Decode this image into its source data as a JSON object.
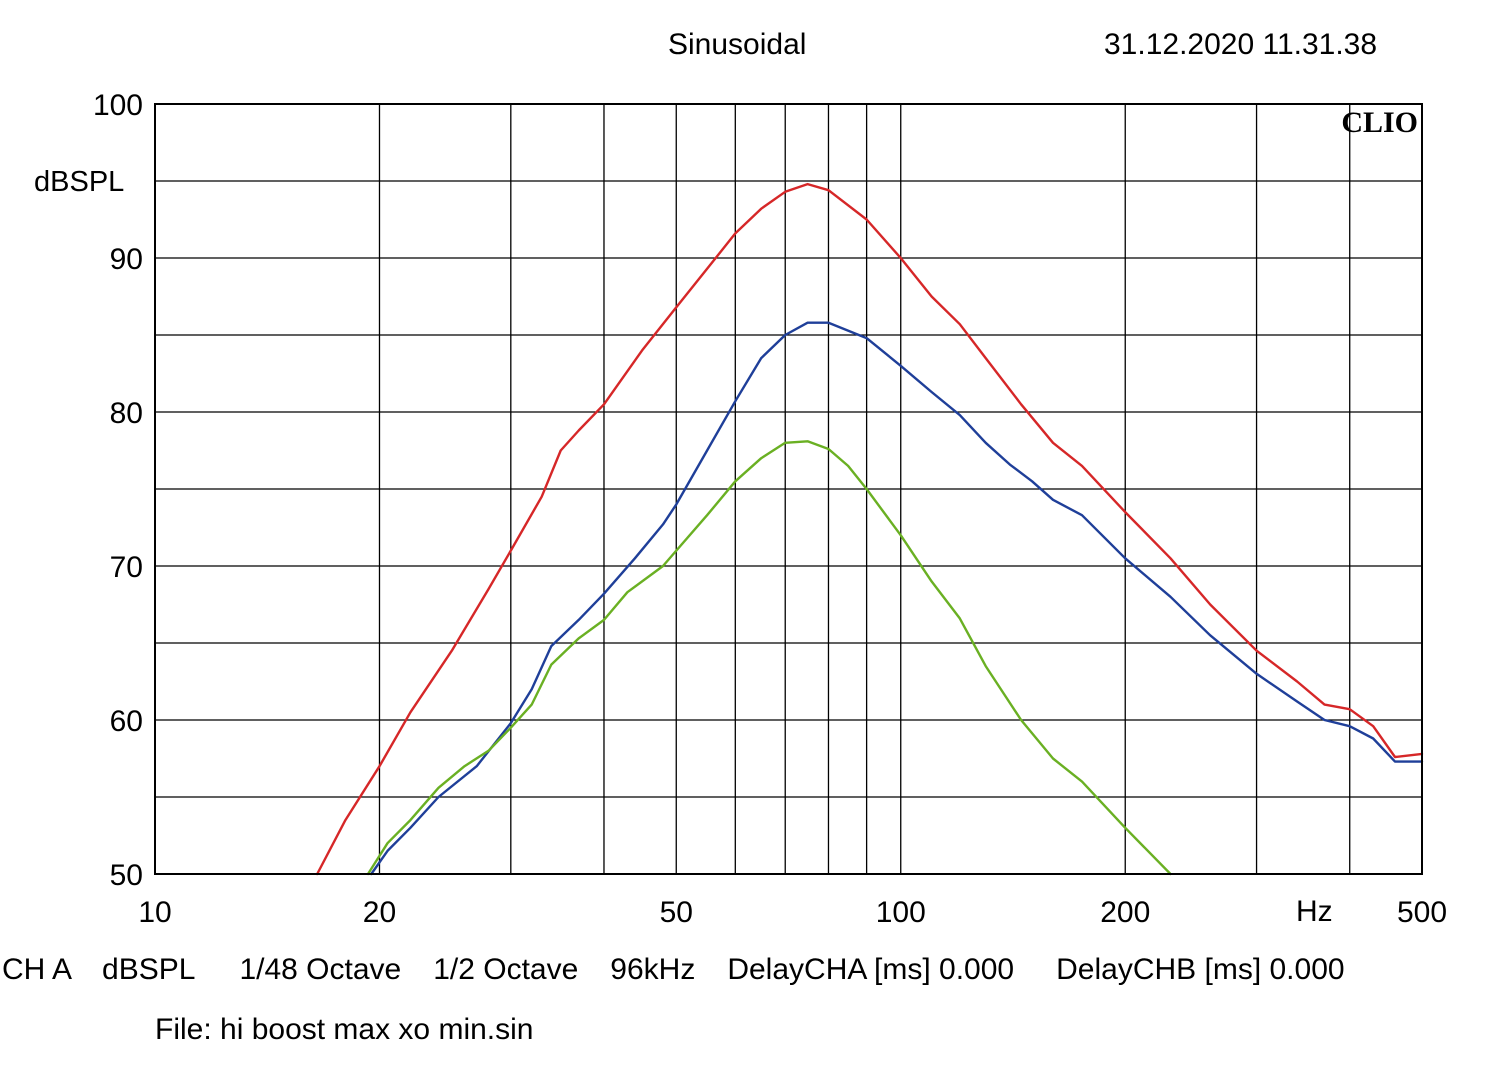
{
  "header": {
    "title": "Sinusoidal",
    "timestamp": "31.12.2020 11.31.38"
  },
  "brand": "CLIO",
  "footer": {
    "channel": "CH A",
    "unit": "dBSPL",
    "resolution": "1/48 Octave",
    "smoothing": "1/2 Octave",
    "sample_rate": "96kHz",
    "delay_a": "DelayCHA [ms] 0.000",
    "delay_b": "DelayCHB [ms] 0.000",
    "file": "File: hi boost max xo min.sin"
  },
  "chart_data": {
    "type": "line",
    "title": "Sinusoidal",
    "ylabel": "dBSPL",
    "xlabel": "Hz",
    "x_scale": "log",
    "xlim": [
      10,
      500
    ],
    "ylim": [
      50,
      100
    ],
    "grid": true,
    "x_ticks": [
      10,
      20,
      50,
      100,
      200,
      500
    ],
    "x_tick_labels": [
      "10",
      "20",
      "50",
      "100",
      "200",
      "500"
    ],
    "y_ticks": [
      50,
      60,
      70,
      80,
      90,
      100
    ],
    "y_tick_labels": [
      "50",
      "60",
      "70",
      "80",
      "90",
      "100"
    ],
    "series": [
      {
        "color": "#d62728",
        "points": [
          [
            16.5,
            50
          ],
          [
            18,
            53.5
          ],
          [
            20,
            57
          ],
          [
            22,
            60.5
          ],
          [
            25,
            64.5
          ],
          [
            28,
            68.5
          ],
          [
            30,
            71
          ],
          [
            33,
            74.5
          ],
          [
            35,
            77.5
          ],
          [
            37,
            78.8
          ],
          [
            40,
            80.5
          ],
          [
            45,
            84
          ],
          [
            50,
            86.8
          ],
          [
            55,
            89.3
          ],
          [
            60,
            91.6
          ],
          [
            65,
            93.2
          ],
          [
            70,
            94.3
          ],
          [
            75,
            94.8
          ],
          [
            80,
            94.4
          ],
          [
            90,
            92.5
          ],
          [
            100,
            90
          ],
          [
            110,
            87.5
          ],
          [
            120,
            85.7
          ],
          [
            130,
            83.5
          ],
          [
            145,
            80.5
          ],
          [
            160,
            78
          ],
          [
            175,
            76.5
          ],
          [
            200,
            73.5
          ],
          [
            230,
            70.5
          ],
          [
            260,
            67.5
          ],
          [
            300,
            64.5
          ],
          [
            340,
            62.5
          ],
          [
            370,
            61
          ],
          [
            400,
            60.7
          ],
          [
            430,
            59.6
          ],
          [
            460,
            57.6
          ],
          [
            500,
            57.8
          ]
        ]
      },
      {
        "color": "#1f3f99",
        "points": [
          [
            19.5,
            50
          ],
          [
            20.5,
            51.5
          ],
          [
            22,
            53
          ],
          [
            24,
            55
          ],
          [
            27,
            57
          ],
          [
            30,
            59.8
          ],
          [
            32,
            62
          ],
          [
            34,
            64.8
          ],
          [
            37,
            66.5
          ],
          [
            40,
            68.2
          ],
          [
            44,
            70.5
          ],
          [
            48,
            72.7
          ],
          [
            50,
            74
          ],
          [
            55,
            77.5
          ],
          [
            60,
            80.7
          ],
          [
            65,
            83.5
          ],
          [
            70,
            85
          ],
          [
            75,
            85.8
          ],
          [
            80,
            85.8
          ],
          [
            90,
            84.8
          ],
          [
            100,
            83
          ],
          [
            110,
            81.3
          ],
          [
            120,
            79.8
          ],
          [
            130,
            78
          ],
          [
            140,
            76.6
          ],
          [
            150,
            75.5
          ],
          [
            160,
            74.3
          ],
          [
            175,
            73.3
          ],
          [
            200,
            70.5
          ],
          [
            230,
            68
          ],
          [
            260,
            65.5
          ],
          [
            300,
            63
          ],
          [
            340,
            61.2
          ],
          [
            370,
            60
          ],
          [
            400,
            59.6
          ],
          [
            430,
            58.8
          ],
          [
            460,
            57.3
          ],
          [
            500,
            57.3
          ]
        ]
      },
      {
        "color": "#6ab023",
        "points": [
          [
            19.3,
            50
          ],
          [
            20.5,
            52
          ],
          [
            22,
            53.5
          ],
          [
            24,
            55.6
          ],
          [
            26,
            57
          ],
          [
            28,
            58
          ],
          [
            30,
            59.5
          ],
          [
            32,
            61
          ],
          [
            34,
            63.6
          ],
          [
            37,
            65.3
          ],
          [
            40,
            66.5
          ],
          [
            43,
            68.3
          ],
          [
            48,
            70
          ],
          [
            50,
            71
          ],
          [
            55,
            73.3
          ],
          [
            60,
            75.5
          ],
          [
            65,
            77
          ],
          [
            70,
            78
          ],
          [
            75,
            78.1
          ],
          [
            80,
            77.6
          ],
          [
            85,
            76.5
          ],
          [
            90,
            75
          ],
          [
            100,
            72
          ],
          [
            110,
            69
          ],
          [
            120,
            66.6
          ],
          [
            130,
            63.5
          ],
          [
            145,
            60
          ],
          [
            160,
            57.5
          ],
          [
            175,
            56
          ],
          [
            200,
            53
          ],
          [
            230,
            50
          ]
        ]
      }
    ]
  }
}
